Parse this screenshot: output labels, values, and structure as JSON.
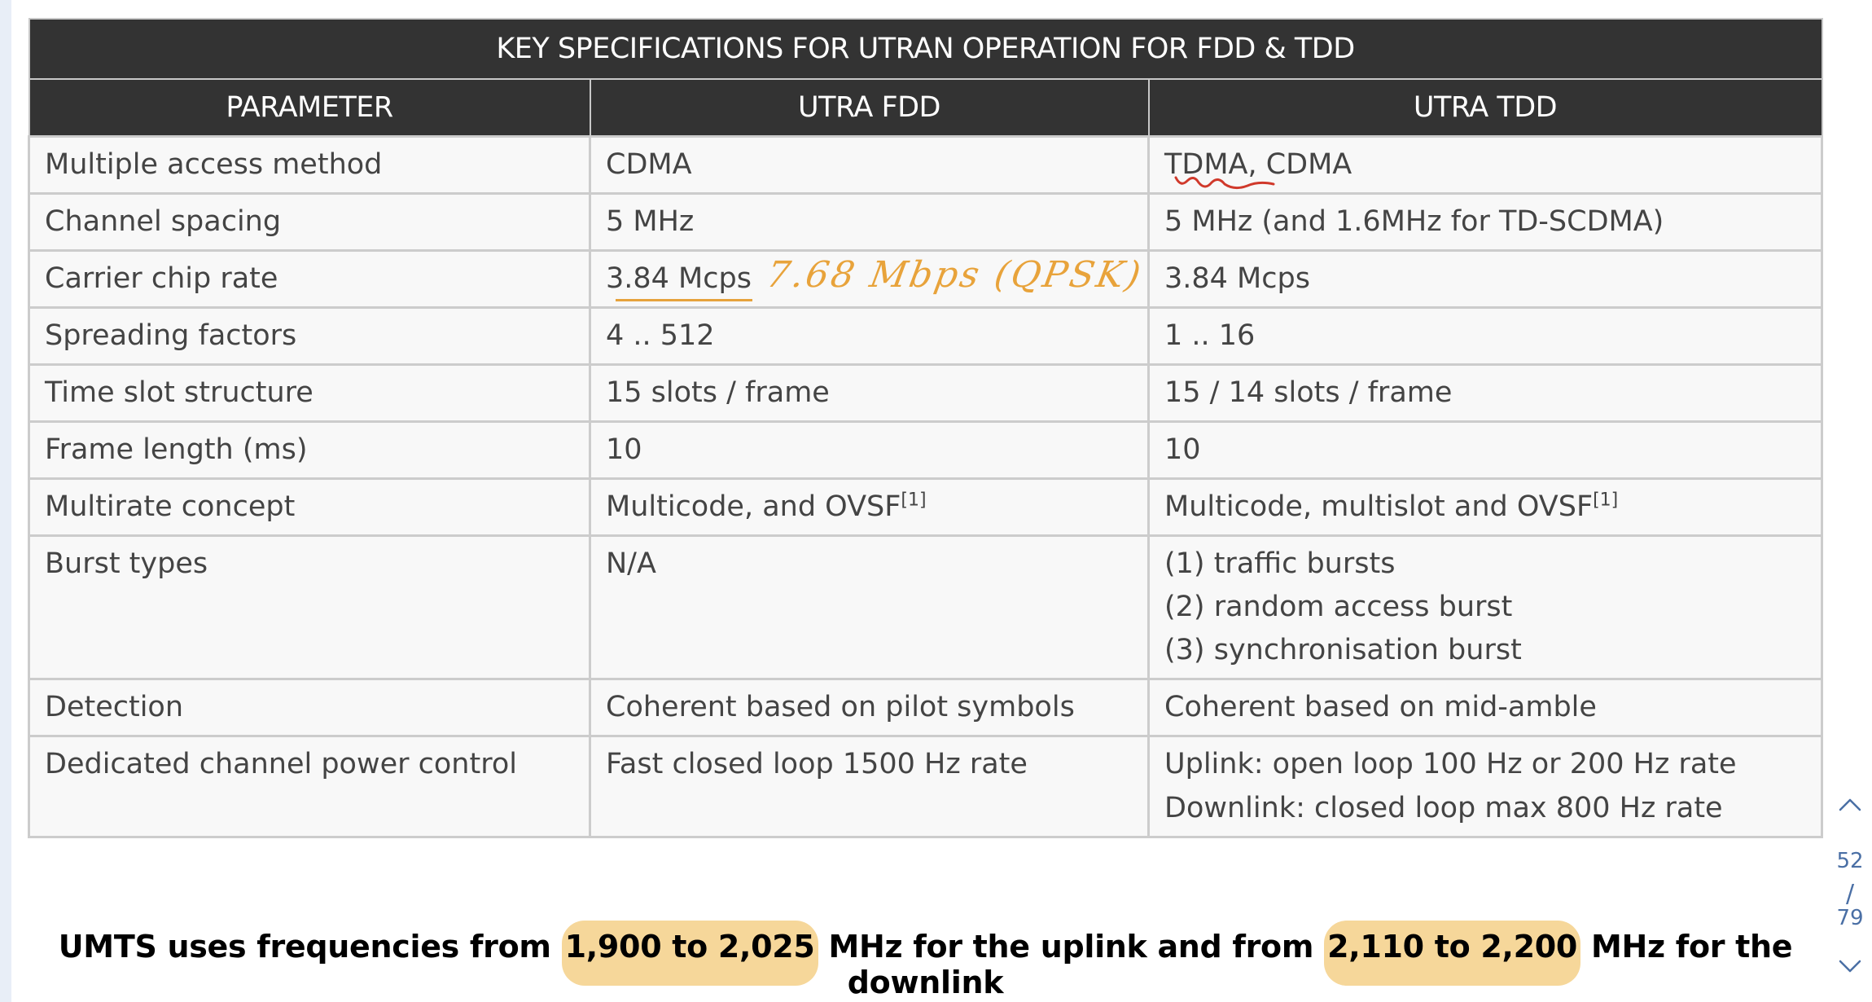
{
  "table": {
    "caption": "KEY SPECIFICATIONS FOR UTRAN OPERATION FOR FDD & TDD",
    "headers": [
      "PARAMETER",
      "UTRA FDD",
      "UTRA TDD"
    ],
    "rows": [
      {
        "param": "Multiple access method",
        "fdd": [
          "CDMA"
        ],
        "tdd": [
          "TDMA, CDMA"
        ]
      },
      {
        "param": "Channel spacing",
        "fdd": [
          "5 MHz"
        ],
        "tdd": [
          "5 MHz (and 1.6MHz for TD-SCDMA)"
        ]
      },
      {
        "param": "Carrier chip rate",
        "fdd": [
          "3.84 Mcps"
        ],
        "tdd": [
          "3.84 Mcps"
        ]
      },
      {
        "param": "Spreading factors",
        "fdd": [
          "4 .. 512"
        ],
        "tdd": [
          "1 .. 16"
        ]
      },
      {
        "param": "Time slot structure",
        "fdd": [
          "15 slots / frame"
        ],
        "tdd": [
          "15 / 14 slots / frame"
        ]
      },
      {
        "param": "Frame length (ms)",
        "fdd": [
          "10"
        ],
        "tdd": [
          "10"
        ]
      },
      {
        "param": "Multirate concept",
        "fdd": [
          "Multicode, and OVSF"
        ],
        "fdd_sup": "[1]",
        "tdd": [
          "Multicode, multislot and OVSF"
        ],
        "tdd_sup": "[1]"
      },
      {
        "param": "Burst types",
        "fdd": [
          "N/A"
        ],
        "tdd": [
          "(1) traffic bursts",
          "(2) random access burst",
          "(3) synchronisation burst"
        ]
      },
      {
        "param": "Detection",
        "fdd": [
          "Coherent based on pilot symbols"
        ],
        "tdd": [
          "Coherent based on mid-amble"
        ]
      },
      {
        "param": "Dedicated channel power control",
        "fdd": [
          "Fast closed loop 1500 Hz rate"
        ],
        "tdd": [
          "Uplink: open loop 100 Hz or 200 Hz rate",
          "Downlink: closed loop max 800 Hz rate"
        ]
      }
    ]
  },
  "annotation": {
    "handwritten": "7.68 Mbps (QPSK)",
    "color": "#e8a33b",
    "squiggle_color": "#d0392b"
  },
  "caption": {
    "part1": "UMTS uses frequencies from ",
    "hl1": "1,900 to 2,025",
    "part2": " MHz for the uplink and from ",
    "hl2": "2,110 to 2,200",
    "part3": " MHz for the downlink",
    "highlight_color": "#f6d79a"
  },
  "pager": {
    "current": "52",
    "separator": "/",
    "total": "79",
    "up_icon": "chevron-up-icon",
    "down_icon": "chevron-down-icon"
  }
}
